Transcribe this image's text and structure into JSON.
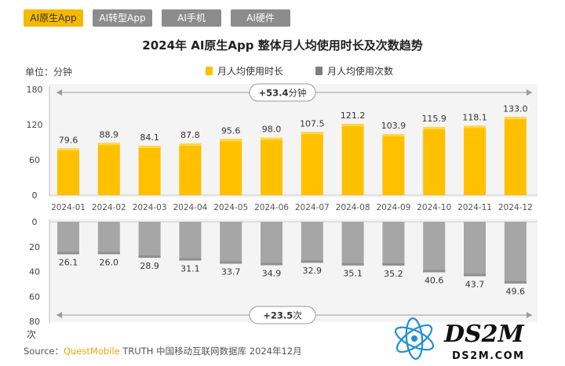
{
  "tabs": [
    "AI原生App",
    "AI转型App",
    "AI手机",
    "AI硬件"
  ],
  "active_tab": 0,
  "unit_top": "单位：分钟",
  "unit_bottom": "次",
  "legend": {
    "duration": "月人均使用时长",
    "count": "月人均使用次数"
  },
  "source": {
    "prefix": "Source：",
    "brand": "QuestMobile",
    "rest": "TRUTH 中国移动互联网数据库 2024年12月"
  },
  "watermark": {
    "main": "DS2M",
    "sub": "DS2M.COM"
  },
  "colors": {
    "accent": "#f5b800",
    "bar_top": "#ffc000",
    "bar_bottom": "#a6a6a6",
    "tab_inactive": "#8c8c8c"
  },
  "chart_data": {
    "type": "bar",
    "title": "2024年 AI原生App 整体月人均使用时长及次数趋势",
    "categories": [
      "2024-01",
      "2024-02",
      "2024-03",
      "2024-04",
      "2024-05",
      "2024-06",
      "2024-07",
      "2024-08",
      "2024-09",
      "2024-10",
      "2024-11",
      "2024-12"
    ],
    "series": [
      {
        "name": "月人均使用时长",
        "unit": "分钟",
        "values": [
          79.6,
          88.9,
          84.1,
          87.8,
          95.6,
          98.0,
          107.5,
          121.2,
          103.9,
          115.9,
          118.1,
          133.0
        ],
        "labels": [
          "79.6",
          "88.9",
          "84.1",
          "87.8",
          "95.6",
          "98.0",
          "107.5",
          "121.2",
          "103.9",
          "115.9",
          "118.1",
          "133.0"
        ],
        "ylim": [
          0,
          180
        ],
        "ticks": [
          "180",
          "120",
          "60",
          "0"
        ],
        "tick_values": [
          180,
          120,
          60,
          0
        ]
      },
      {
        "name": "月人均使用次数",
        "unit": "次",
        "values": [
          26.1,
          26.0,
          28.9,
          31.1,
          33.7,
          34.9,
          32.9,
          35.1,
          35.2,
          40.6,
          43.7,
          49.6
        ],
        "labels": [
          "26.1",
          "26.0",
          "28.9",
          "31.1",
          "33.7",
          "34.9",
          "32.9",
          "35.1",
          "35.2",
          "40.6",
          "43.7",
          "49.6"
        ],
        "ylim": [
          0,
          80
        ],
        "ticks": [
          "0",
          "20",
          "40",
          "60",
          "80"
        ],
        "tick_values": [
          0,
          20,
          40,
          60,
          80
        ]
      }
    ],
    "annotations": {
      "duration_growth": {
        "number": "+53.4",
        "unit": "分钟"
      },
      "count_growth": {
        "number": "+23.5",
        "unit": "次"
      }
    }
  }
}
